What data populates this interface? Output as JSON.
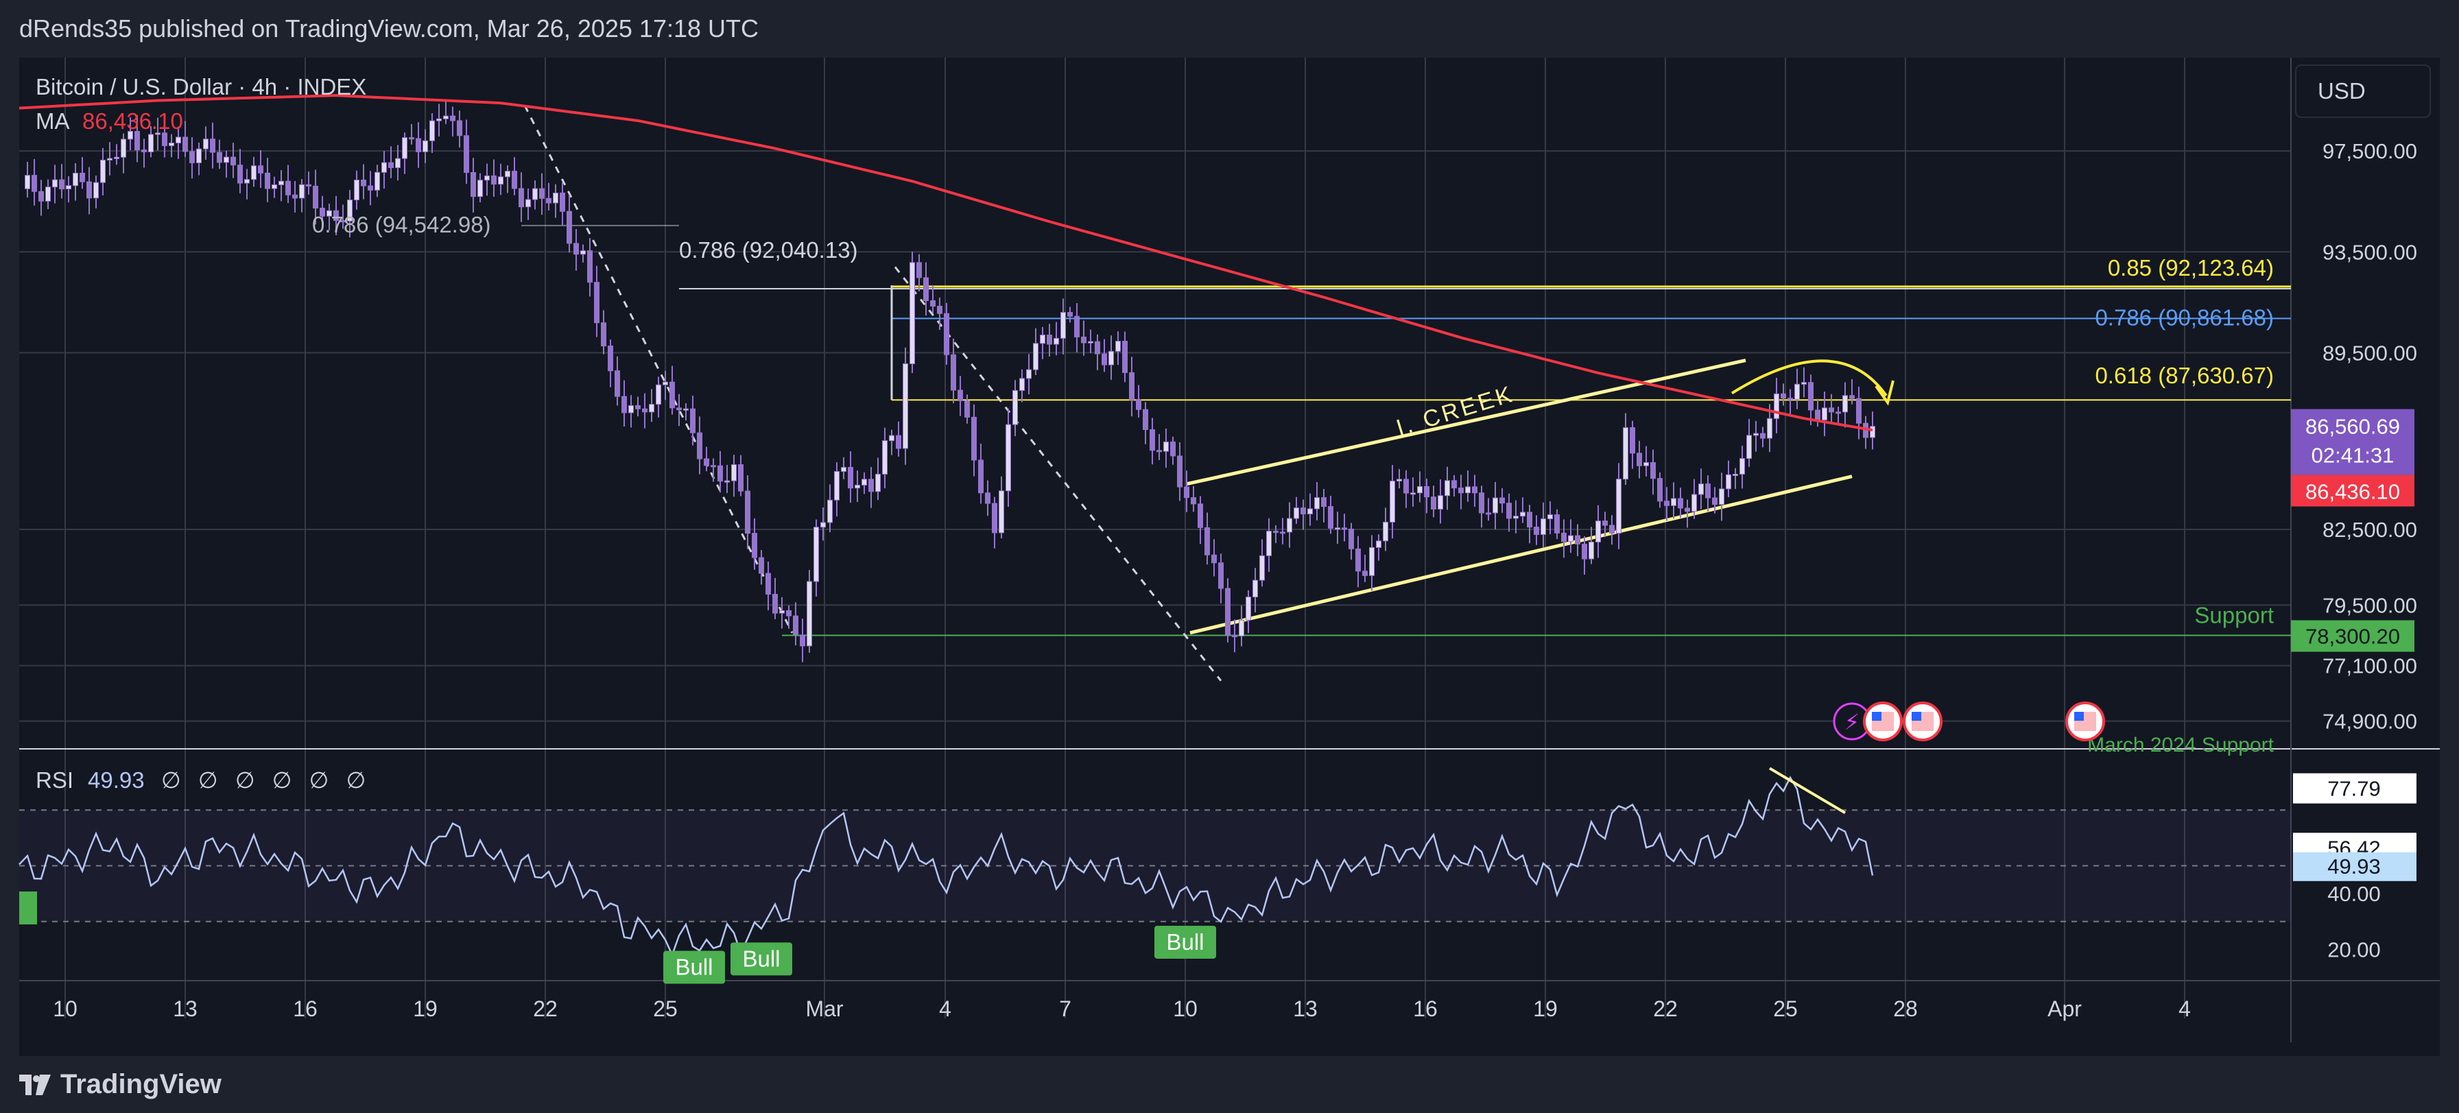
{
  "header": {
    "published": "dRends35 published on TradingView.com, Mar 26, 2025 17:18 UTC"
  },
  "legend": {
    "title": "Bitcoin / U.S. Dollar · 4h · INDEX",
    "ma_label": "MA",
    "ma_value": "86,436.10"
  },
  "currency": "USD",
  "footer": {
    "brand": "TradingView"
  },
  "colors": {
    "bg": "#131722",
    "outer": "#1e222d",
    "grid": "#363a45",
    "ma": "#f23645",
    "candle": "#9575cd",
    "candle_up": "#e0dbf2",
    "fib_yellow": "#ffeb3b",
    "fib_white": "#d1d4dc",
    "fib_blue": "#2962ff",
    "support": "#4caf50",
    "rsi": "#b3c6f5"
  },
  "chart_data": [
    {
      "type": "candlestick",
      "title": "Bitcoin / U.S. Dollar · 4h · INDEX",
      "ylim": [
        73800,
        101200
      ],
      "price_ticks": [
        "97,500.00",
        "93,500.00",
        "89,500.00",
        "82,500.00",
        "79,500.00",
        "77,100.00",
        "74,900.00"
      ],
      "date_ticks": [
        "10",
        "13",
        "16",
        "19",
        "22",
        "25",
        "Mar",
        "4",
        "7",
        "10",
        "13",
        "16",
        "19",
        "22",
        "25",
        "28",
        "Apr",
        "4"
      ],
      "close_path": [
        [
          0,
          96000
        ],
        [
          10,
          96200
        ],
        [
          16,
          98000
        ],
        [
          22,
          97800
        ],
        [
          28,
          97400
        ],
        [
          34,
          96400
        ],
        [
          40,
          96000
        ],
        [
          46,
          94800
        ],
        [
          52,
          96700
        ],
        [
          58,
          97900
        ],
        [
          62,
          99100
        ],
        [
          66,
          96200
        ],
        [
          70,
          96400
        ],
        [
          74,
          95700
        ],
        [
          78,
          95500
        ],
        [
          82,
          93200
        ],
        [
          86,
          88500
        ],
        [
          90,
          86800
        ],
        [
          94,
          88400
        ],
        [
          96,
          87300
        ],
        [
          100,
          85000
        ],
        [
          104,
          84600
        ],
        [
          108,
          80600
        ],
        [
          112,
          78500
        ],
        [
          114,
          78300
        ],
        [
          116,
          82500
        ],
        [
          120,
          84800
        ],
        [
          124,
          84100
        ],
        [
          126,
          85600
        ],
        [
          128,
          86100
        ],
        [
          130,
          92900
        ],
        [
          134,
          90600
        ],
        [
          138,
          86600
        ],
        [
          140,
          84000
        ],
        [
          142,
          82300
        ],
        [
          144,
          86900
        ],
        [
          148,
          89700
        ],
        [
          152,
          90800
        ],
        [
          156,
          89700
        ],
        [
          160,
          89400
        ],
        [
          164,
          86400
        ],
        [
          168,
          85100
        ],
        [
          170,
          83900
        ],
        [
          172,
          82800
        ],
        [
          174,
          80800
        ],
        [
          176,
          78500
        ],
        [
          178,
          78800
        ],
        [
          180,
          80800
        ],
        [
          184,
          82900
        ],
        [
          188,
          83400
        ],
        [
          192,
          82900
        ],
        [
          196,
          80400
        ],
        [
          200,
          84300
        ],
        [
          204,
          83800
        ],
        [
          210,
          84100
        ],
        [
          216,
          83200
        ],
        [
          222,
          82700
        ],
        [
          228,
          81800
        ],
        [
          232,
          82700
        ],
        [
          234,
          86400
        ],
        [
          238,
          84100
        ],
        [
          242,
          83400
        ],
        [
          248,
          84100
        ],
        [
          252,
          85700
        ],
        [
          256,
          87600
        ],
        [
          260,
          88000
        ],
        [
          262,
          87300
        ],
        [
          264,
          86900
        ],
        [
          266,
          87700
        ],
        [
          268,
          86900
        ],
        [
          270,
          86560
        ]
      ],
      "ma_path": [
        [
          0,
          99200
        ],
        [
          20,
          99500
        ],
        [
          46,
          99700
        ],
        [
          70,
          99400
        ],
        [
          90,
          98700
        ],
        [
          110,
          97600
        ],
        [
          130,
          96300
        ],
        [
          150,
          94700
        ],
        [
          170,
          93200
        ],
        [
          190,
          91700
        ],
        [
          210,
          90100
        ],
        [
          230,
          88700
        ],
        [
          250,
          87500
        ],
        [
          260,
          86900
        ],
        [
          270,
          86436
        ]
      ],
      "current_price": {
        "price": "86,560.69",
        "countdown": "02:41:31"
      },
      "ma_tag": "86,436.10",
      "fib_levels": [
        {
          "label": "0.85 (92,123.64)",
          "price": 92123.64,
          "color": "#ffeb3b"
        },
        {
          "label": "0.786 (90,861.68)",
          "price": 90861.68,
          "color": "#5b9cf6"
        },
        {
          "label": "0.618 (87,630.67)",
          "price": 87630.67,
          "color": "#ffeb3b"
        },
        {
          "label": "0.786 (92,040.13)",
          "price": 92040.13,
          "color": "#d1d4dc"
        },
        {
          "label": "0.786 (94,542.98)",
          "price": 94542.98,
          "color": "#d1d4dc"
        }
      ],
      "support": {
        "label": "Support",
        "price": 78300.2,
        "price_label": "78,300.20"
      },
      "annotations": [
        "I. CREEK",
        "March 2024 Support"
      ]
    },
    {
      "type": "line",
      "title": "RSI",
      "rsi_label": "RSI",
      "rsi_value": "49.93",
      "rsi_extras": "∅ ∅ ∅ ∅ ∅ ∅",
      "ylim": [
        10,
        90
      ],
      "ticks": [
        "77.79",
        "56.42",
        "49.93",
        "40.00",
        "20.00"
      ],
      "levels": [
        70,
        50,
        30
      ],
      "signals": [
        "Bull",
        "Bull",
        "Bull"
      ],
      "values": [
        [
          0,
          48
        ],
        [
          6,
          52
        ],
        [
          14,
          58
        ],
        [
          20,
          46
        ],
        [
          28,
          57
        ],
        [
          36,
          54
        ],
        [
          44,
          46
        ],
        [
          52,
          41
        ],
        [
          58,
          52
        ],
        [
          62,
          63
        ],
        [
          68,
          54
        ],
        [
          76,
          47
        ],
        [
          82,
          44
        ],
        [
          88,
          29
        ],
        [
          94,
          24
        ],
        [
          100,
          22
        ],
        [
          106,
          25
        ],
        [
          112,
          36
        ],
        [
          116,
          55
        ],
        [
          118,
          70
        ],
        [
          122,
          55
        ],
        [
          130,
          54
        ],
        [
          136,
          44
        ],
        [
          142,
          56
        ],
        [
          150,
          47
        ],
        [
          158,
          50
        ],
        [
          164,
          43
        ],
        [
          170,
          40
        ],
        [
          174,
          37
        ],
        [
          176,
          30
        ],
        [
          180,
          36
        ],
        [
          188,
          46
        ],
        [
          196,
          50
        ],
        [
          204,
          57
        ],
        [
          210,
          51
        ],
        [
          216,
          56
        ],
        [
          224,
          43
        ],
        [
          230,
          63
        ],
        [
          234,
          72
        ],
        [
          240,
          53
        ],
        [
          248,
          57
        ],
        [
          254,
          73
        ],
        [
          258,
          80
        ],
        [
          262,
          61
        ],
        [
          266,
          63
        ],
        [
          270,
          50
        ]
      ]
    }
  ]
}
